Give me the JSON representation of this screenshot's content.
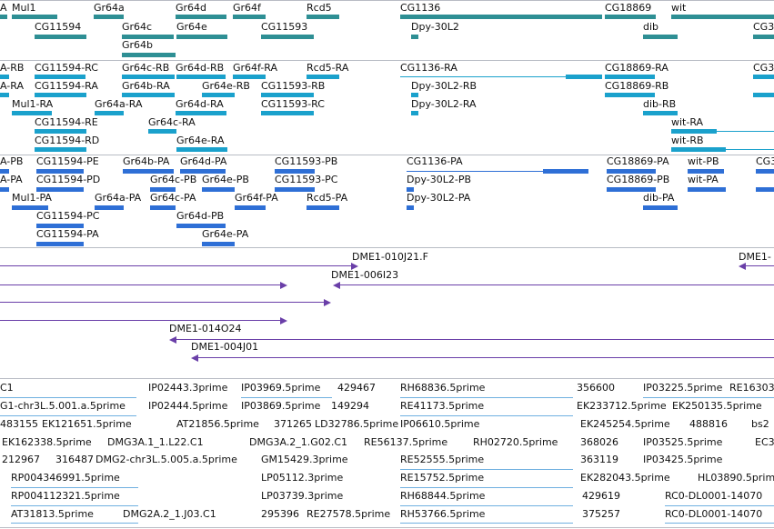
{
  "colors": {
    "gene": "#2e8f94",
    "transcript": "#1aa1cc",
    "protein": "#2e6fd6",
    "clone": "#6a3fa8",
    "est": "#6fb0e0",
    "separator": "#b8bcc4"
  },
  "tracks": {
    "genes": {
      "name": "genes-track",
      "labels": [
        "A",
        "Mul1",
        "Gr64a",
        "Gr64d",
        "Gr64f",
        "Rcd5",
        "CG1136",
        "CG18869",
        "wit",
        "CG11594",
        "Gr64c",
        "Gr64e",
        "CG11593",
        "Dpy-30L2",
        "dib",
        "CG3",
        "Gr64b"
      ]
    },
    "transcripts": {
      "name": "transcripts-track",
      "labels": [
        "A-RB",
        "CG11594-RC",
        "Gr64c-RB",
        "Gr64d-RB",
        "Gr64f-RA",
        "Rcd5-RA",
        "CG1136-RA",
        "CG18869-RA",
        "CG3",
        "A-RA",
        "CG11594-RA",
        "Gr64b-RA",
        "Gr64e-RB",
        "CG11593-RB",
        "Dpy-30L2-RB",
        "CG18869-RB",
        "Mul1-RA",
        "Gr64a-RA",
        "Gr64d-RA",
        "CG11593-RC",
        "Dpy-30L2-RA",
        "dib-RB",
        "CG11594-RE",
        "Gr64c-RA",
        "wit-RA",
        "CG11594-RD",
        "Gr64e-RA",
        "wit-RB"
      ]
    },
    "proteins": {
      "name": "proteins-track",
      "labels": [
        "A-PB",
        "CG11594-PE",
        "Gr64b-PA",
        "Gr64d-PA",
        "CG11593-PB",
        "CG1136-PA",
        "CG18869-PA",
        "wit-PB",
        "CG3",
        "A-PA",
        "CG11594-PD",
        "Gr64c-PB",
        "Gr64e-PB",
        "CG11593-PC",
        "Dpy-30L2-PB",
        "CG18869-PB",
        "wit-PA",
        "Mul1-PA",
        "Gr64a-PA",
        "Gr64c-PA",
        "Gr64f-PA",
        "Rcd5-PA",
        "Dpy-30L2-PA",
        "dib-PA",
        "CG11594-PC",
        "Gr64d-PB",
        "CG11594-PA",
        "Gr64e-PA"
      ]
    },
    "clones": {
      "name": "bac-clones-track",
      "labels": [
        "DME1-010J21.F",
        "DME1-",
        "DME1-006I23",
        "DME1-014O24",
        "DME1-004J01"
      ]
    },
    "ests": {
      "name": "est-track",
      "labels": [
        "C1",
        "IP02443.3prime",
        "IP03969.5prime",
        "429467",
        "RH68836.5prime",
        "356600",
        "IP03225.5prime",
        "RE16303",
        "G1-chr3L.5.001.a.5prime",
        "IP02444.5prime",
        "IP03869.5prime",
        "149294",
        "RE41173.5prime",
        "EK233712.5prime",
        "EK250135.5prime",
        "483155",
        "EK121651.5prime",
        "AT21856.5prime",
        "371265",
        "LD32786.5prime",
        "IP06610.5prime",
        "EK245254.5prime",
        "488816",
        "bs2",
        "EK162338.5prime",
        "DMG3A.1_1.L22.C1",
        "DMG3A.2_1.G02.C1",
        "RE56137.5prime",
        "RH02720.5prime",
        "368026",
        "IP03525.5prime",
        "EC3",
        "212967",
        "316487",
        "DMG2-chr3L.5.005.a.5prime",
        "GM15429.3prime",
        "RE52555.5prime",
        "363119",
        "IP03425.5prime",
        "RP004346991.5prime",
        "LP05112.3prime",
        "RE15752.5prime",
        "EK282043.5prime",
        "HL03890.5prime",
        "RP004112321.5prime",
        "LP03739.3prime",
        "RH68844.5prime",
        "429619",
        "RC0-DL0001-14070",
        "AT31813.5prime",
        "DMG2A.2_1.J03.C1",
        "295396",
        "RE27578.5prime",
        "RH53766.5prime",
        "375257",
        "RC0-DL0001-14070"
      ]
    }
  }
}
